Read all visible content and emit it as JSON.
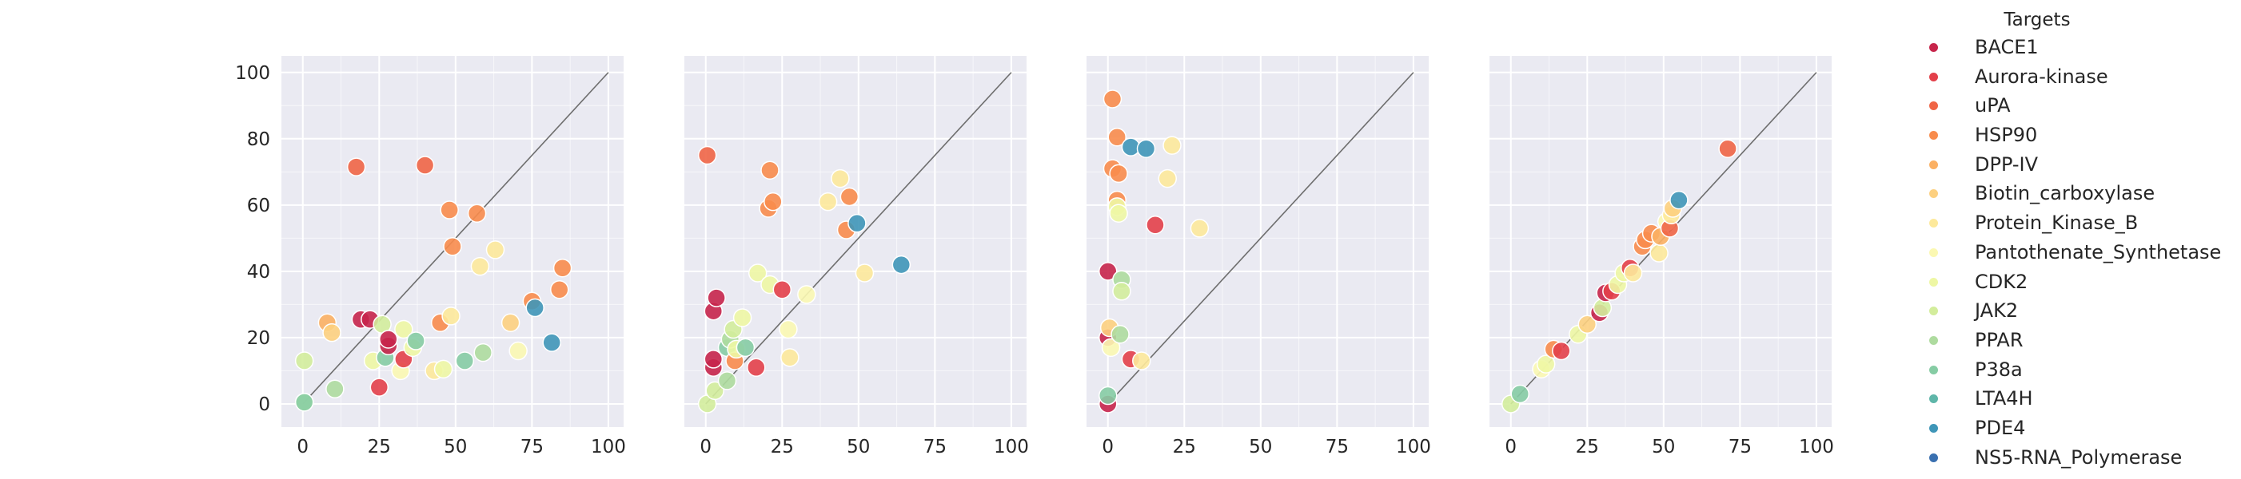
{
  "colors": {
    "BACE1": "#c7254b",
    "Aurora-kinase": "#e3404a",
    "uPA": "#f06546",
    "HSP90": "#f88c4d",
    "DPP-IV": "#fbb063",
    "Biotin_carboxylase": "#fdd080",
    "Protein_Kinase_B": "#fde99b",
    "Pantothenate_Synthetase": "#fbf8b2",
    "CDK2": "#eef7a4",
    "JAK2": "#d3ed9c",
    "PPAR": "#aedb9f",
    "P38a": "#86cca4",
    "LTA4H": "#5fb6a9",
    "PDE4": "#3f96b8",
    "NS5-RNA_Polymerase": "#3a70b0"
  },
  "legend": {
    "title": "Targets",
    "items": [
      "BACE1",
      "Aurora-kinase",
      "uPA",
      "HSP90",
      "DPP-IV",
      "Biotin_carboxylase",
      "Protein_Kinase_B",
      "Pantothenate_Synthetase",
      "CDK2",
      "JAK2",
      "PPAR",
      "P38a",
      "LTA4H",
      "PDE4",
      "NS5-RNA_Polymerase"
    ]
  },
  "chart_data": [
    {
      "type": "scatter",
      "xlim": [
        -7,
        105
      ],
      "ylim": [
        -7,
        105
      ],
      "xticks": [
        "0",
        "25",
        "50",
        "75",
        "100"
      ],
      "yticks": [
        "0",
        "20",
        "40",
        "60",
        "80",
        "100"
      ],
      "diagonal": true,
      "grid": true,
      "points": [
        {
          "x": 0.5,
          "y": 0.5,
          "target": "JAK2"
        },
        {
          "x": 0.5,
          "y": 0.5,
          "target": "P38a"
        },
        {
          "x": 0.5,
          "y": 13,
          "target": "JAK2"
        },
        {
          "x": 8,
          "y": 24.5,
          "target": "DPP-IV"
        },
        {
          "x": 9.5,
          "y": 21.5,
          "target": "Biotin_carboxylase"
        },
        {
          "x": 10.5,
          "y": 4.5,
          "target": "PPAR"
        },
        {
          "x": 17.5,
          "y": 71.5,
          "target": "uPA"
        },
        {
          "x": 19,
          "y": 25.5,
          "target": "BACE1"
        },
        {
          "x": 22,
          "y": 25.5,
          "target": "BACE1"
        },
        {
          "x": 23,
          "y": 13,
          "target": "CDK2"
        },
        {
          "x": 25,
          "y": 5,
          "target": "Aurora-kinase"
        },
        {
          "x": 26,
          "y": 24,
          "target": "JAK2"
        },
        {
          "x": 27,
          "y": 14,
          "target": "P38a"
        },
        {
          "x": 28,
          "y": 17.5,
          "target": "BACE1"
        },
        {
          "x": 28,
          "y": 19.5,
          "target": "BACE1"
        },
        {
          "x": 32,
          "y": 10,
          "target": "Pantothenate_Synthetase"
        },
        {
          "x": 33,
          "y": 13.5,
          "target": "Aurora-kinase"
        },
        {
          "x": 33,
          "y": 22.5,
          "target": "CDK2"
        },
        {
          "x": 36,
          "y": 17,
          "target": "CDK2"
        },
        {
          "x": 37,
          "y": 19,
          "target": "P38a"
        },
        {
          "x": 40,
          "y": 72,
          "target": "uPA"
        },
        {
          "x": 43,
          "y": 10,
          "target": "Protein_Kinase_B"
        },
        {
          "x": 45,
          "y": 24.5,
          "target": "HSP90"
        },
        {
          "x": 46,
          "y": 10.5,
          "target": "CDK2"
        },
        {
          "x": 48,
          "y": 58.5,
          "target": "HSP90"
        },
        {
          "x": 48.5,
          "y": 26.5,
          "target": "Protein_Kinase_B"
        },
        {
          "x": 49,
          "y": 47.5,
          "target": "HSP90"
        },
        {
          "x": 53,
          "y": 13,
          "target": "P38a"
        },
        {
          "x": 57,
          "y": 57.5,
          "target": "HSP90"
        },
        {
          "x": 58,
          "y": 41.5,
          "target": "Protein_Kinase_B"
        },
        {
          "x": 59,
          "y": 15.5,
          "target": "PPAR"
        },
        {
          "x": 63,
          "y": 46.5,
          "target": "Protein_Kinase_B"
        },
        {
          "x": 68,
          "y": 24.5,
          "target": "Biotin_carboxylase"
        },
        {
          "x": 70.5,
          "y": 16,
          "target": "Pantothenate_Synthetase"
        },
        {
          "x": 75,
          "y": 31,
          "target": "HSP90"
        },
        {
          "x": 76,
          "y": 29,
          "target": "PDE4"
        },
        {
          "x": 81.5,
          "y": 18.5,
          "target": "PDE4"
        },
        {
          "x": 84,
          "y": 34.5,
          "target": "HSP90"
        },
        {
          "x": 85,
          "y": 41,
          "target": "HSP90"
        }
      ]
    },
    {
      "type": "scatter",
      "xlim": [
        -7,
        105
      ],
      "ylim": [
        -7,
        105
      ],
      "xticks": [
        "0",
        "25",
        "50",
        "75",
        "100"
      ],
      "yticks": [],
      "diagonal": true,
      "grid": true,
      "points": [
        {
          "x": 0.5,
          "y": 0,
          "target": "JAK2"
        },
        {
          "x": 0.5,
          "y": 75,
          "target": "uPA"
        },
        {
          "x": 2.5,
          "y": 11,
          "target": "BACE1"
        },
        {
          "x": 2.5,
          "y": 13.5,
          "target": "BACE1"
        },
        {
          "x": 2.5,
          "y": 28,
          "target": "BACE1"
        },
        {
          "x": 3,
          "y": 4,
          "target": "JAK2"
        },
        {
          "x": 3.5,
          "y": 32,
          "target": "BACE1"
        },
        {
          "x": 7,
          "y": 7,
          "target": "PPAR"
        },
        {
          "x": 7,
          "y": 17,
          "target": "P38a"
        },
        {
          "x": 8,
          "y": 19.5,
          "target": "PPAR"
        },
        {
          "x": 9,
          "y": 22.5,
          "target": "JAK2"
        },
        {
          "x": 9.5,
          "y": 13,
          "target": "HSP90"
        },
        {
          "x": 10,
          "y": 16.5,
          "target": "CDK2"
        },
        {
          "x": 12,
          "y": 26,
          "target": "CDK2"
        },
        {
          "x": 13,
          "y": 17,
          "target": "P38a"
        },
        {
          "x": 16.5,
          "y": 11,
          "target": "Aurora-kinase"
        },
        {
          "x": 17,
          "y": 39.5,
          "target": "CDK2"
        },
        {
          "x": 20.5,
          "y": 59,
          "target": "HSP90"
        },
        {
          "x": 21,
          "y": 70.5,
          "target": "HSP90"
        },
        {
          "x": 21,
          "y": 36,
          "target": "CDK2"
        },
        {
          "x": 22,
          "y": 61,
          "target": "HSP90"
        },
        {
          "x": 25,
          "y": 34.5,
          "target": "Aurora-kinase"
        },
        {
          "x": 27,
          "y": 22.5,
          "target": "Pantothenate_Synthetase"
        },
        {
          "x": 27.5,
          "y": 14,
          "target": "Protein_Kinase_B"
        },
        {
          "x": 33,
          "y": 33,
          "target": "Pantothenate_Synthetase"
        },
        {
          "x": 40,
          "y": 61,
          "target": "Protein_Kinase_B"
        },
        {
          "x": 44,
          "y": 68,
          "target": "Protein_Kinase_B"
        },
        {
          "x": 46,
          "y": 52.5,
          "target": "HSP90"
        },
        {
          "x": 47,
          "y": 62.5,
          "target": "HSP90"
        },
        {
          "x": 49.5,
          "y": 54.5,
          "target": "PDE4"
        },
        {
          "x": 52,
          "y": 39.5,
          "target": "Protein_Kinase_B"
        },
        {
          "x": 64,
          "y": 42,
          "target": "PDE4"
        }
      ]
    },
    {
      "type": "scatter",
      "xlim": [
        -7,
        105
      ],
      "ylim": [
        -7,
        105
      ],
      "xticks": [
        "0",
        "25",
        "50",
        "75",
        "100"
      ],
      "yticks": [],
      "diagonal": true,
      "grid": true,
      "points": [
        {
          "x": 0,
          "y": 0,
          "target": "BACE1"
        },
        {
          "x": 0,
          "y": 2.5,
          "target": "P38a"
        },
        {
          "x": 0,
          "y": 20,
          "target": "BACE1"
        },
        {
          "x": 0,
          "y": 40,
          "target": "BACE1"
        },
        {
          "x": 0.5,
          "y": 23,
          "target": "Biotin_carboxylase"
        },
        {
          "x": 1,
          "y": 17,
          "target": "Pantothenate_Synthetase"
        },
        {
          "x": 1.5,
          "y": 92,
          "target": "HSP90"
        },
        {
          "x": 1.5,
          "y": 71,
          "target": "HSP90"
        },
        {
          "x": 3,
          "y": 80.5,
          "target": "HSP90"
        },
        {
          "x": 3,
          "y": 61.5,
          "target": "HSP90"
        },
        {
          "x": 3,
          "y": 59.5,
          "target": "CDK2"
        },
        {
          "x": 3.5,
          "y": 69.5,
          "target": "HSP90"
        },
        {
          "x": 3.5,
          "y": 57.5,
          "target": "CDK2"
        },
        {
          "x": 4,
          "y": 21,
          "target": "PPAR"
        },
        {
          "x": 4.5,
          "y": 37.5,
          "target": "PPAR"
        },
        {
          "x": 4.5,
          "y": 34,
          "target": "JAK2"
        },
        {
          "x": 7.5,
          "y": 77.5,
          "target": "PDE4"
        },
        {
          "x": 7.5,
          "y": 13.5,
          "target": "Aurora-kinase"
        },
        {
          "x": 11,
          "y": 13,
          "target": "Protein_Kinase_B"
        },
        {
          "x": 12.5,
          "y": 77,
          "target": "PDE4"
        },
        {
          "x": 15.5,
          "y": 54,
          "target": "Aurora-kinase"
        },
        {
          "x": 19.5,
          "y": 68,
          "target": "Protein_Kinase_B"
        },
        {
          "x": 21,
          "y": 78,
          "target": "Protein_Kinase_B"
        },
        {
          "x": 30,
          "y": 53,
          "target": "Protein_Kinase_B"
        }
      ]
    },
    {
      "type": "scatter",
      "xlim": [
        -7,
        105
      ],
      "ylim": [
        -7,
        105
      ],
      "xticks": [
        "0",
        "25",
        "50",
        "75",
        "100"
      ],
      "yticks": [],
      "diagonal": true,
      "grid": true,
      "points": [
        {
          "x": 0,
          "y": 0,
          "target": "JAK2"
        },
        {
          "x": 3,
          "y": 3,
          "target": "P38a"
        },
        {
          "x": 10,
          "y": 10.5,
          "target": "Pantothenate_Synthetase"
        },
        {
          "x": 11.5,
          "y": 12,
          "target": "CDK2"
        },
        {
          "x": 14,
          "y": 16.5,
          "target": "HSP90"
        },
        {
          "x": 16.5,
          "y": 16,
          "target": "Aurora-kinase"
        },
        {
          "x": 22,
          "y": 21,
          "target": "CDK2"
        },
        {
          "x": 25,
          "y": 24,
          "target": "Biotin_carboxylase"
        },
        {
          "x": 29,
          "y": 27.5,
          "target": "BACE1"
        },
        {
          "x": 30,
          "y": 29,
          "target": "JAK2"
        },
        {
          "x": 31,
          "y": 33.5,
          "target": "BACE1"
        },
        {
          "x": 33,
          "y": 34,
          "target": "Aurora-kinase"
        },
        {
          "x": 35,
          "y": 36,
          "target": "CDK2"
        },
        {
          "x": 37,
          "y": 39.5,
          "target": "CDK2"
        },
        {
          "x": 39,
          "y": 41,
          "target": "Aurora-kinase"
        },
        {
          "x": 40,
          "y": 39.5,
          "target": "Protein_Kinase_B"
        },
        {
          "x": 43,
          "y": 47.5,
          "target": "HSP90"
        },
        {
          "x": 44,
          "y": 49.5,
          "target": "HSP90"
        },
        {
          "x": 46,
          "y": 51.5,
          "target": "HSP90"
        },
        {
          "x": 48.5,
          "y": 45.5,
          "target": "Protein_Kinase_B"
        },
        {
          "x": 49,
          "y": 50.5,
          "target": "DPP-IV"
        },
        {
          "x": 51,
          "y": 55,
          "target": "Pantothenate_Synthetase"
        },
        {
          "x": 52,
          "y": 53,
          "target": "uPA"
        },
        {
          "x": 52.5,
          "y": 57,
          "target": "Protein_Kinase_B"
        },
        {
          "x": 53,
          "y": 59,
          "target": "Biotin_carboxylase"
        },
        {
          "x": 55,
          "y": 61.5,
          "target": "PDE4"
        },
        {
          "x": 71,
          "y": 77,
          "target": "uPA"
        }
      ]
    }
  ]
}
